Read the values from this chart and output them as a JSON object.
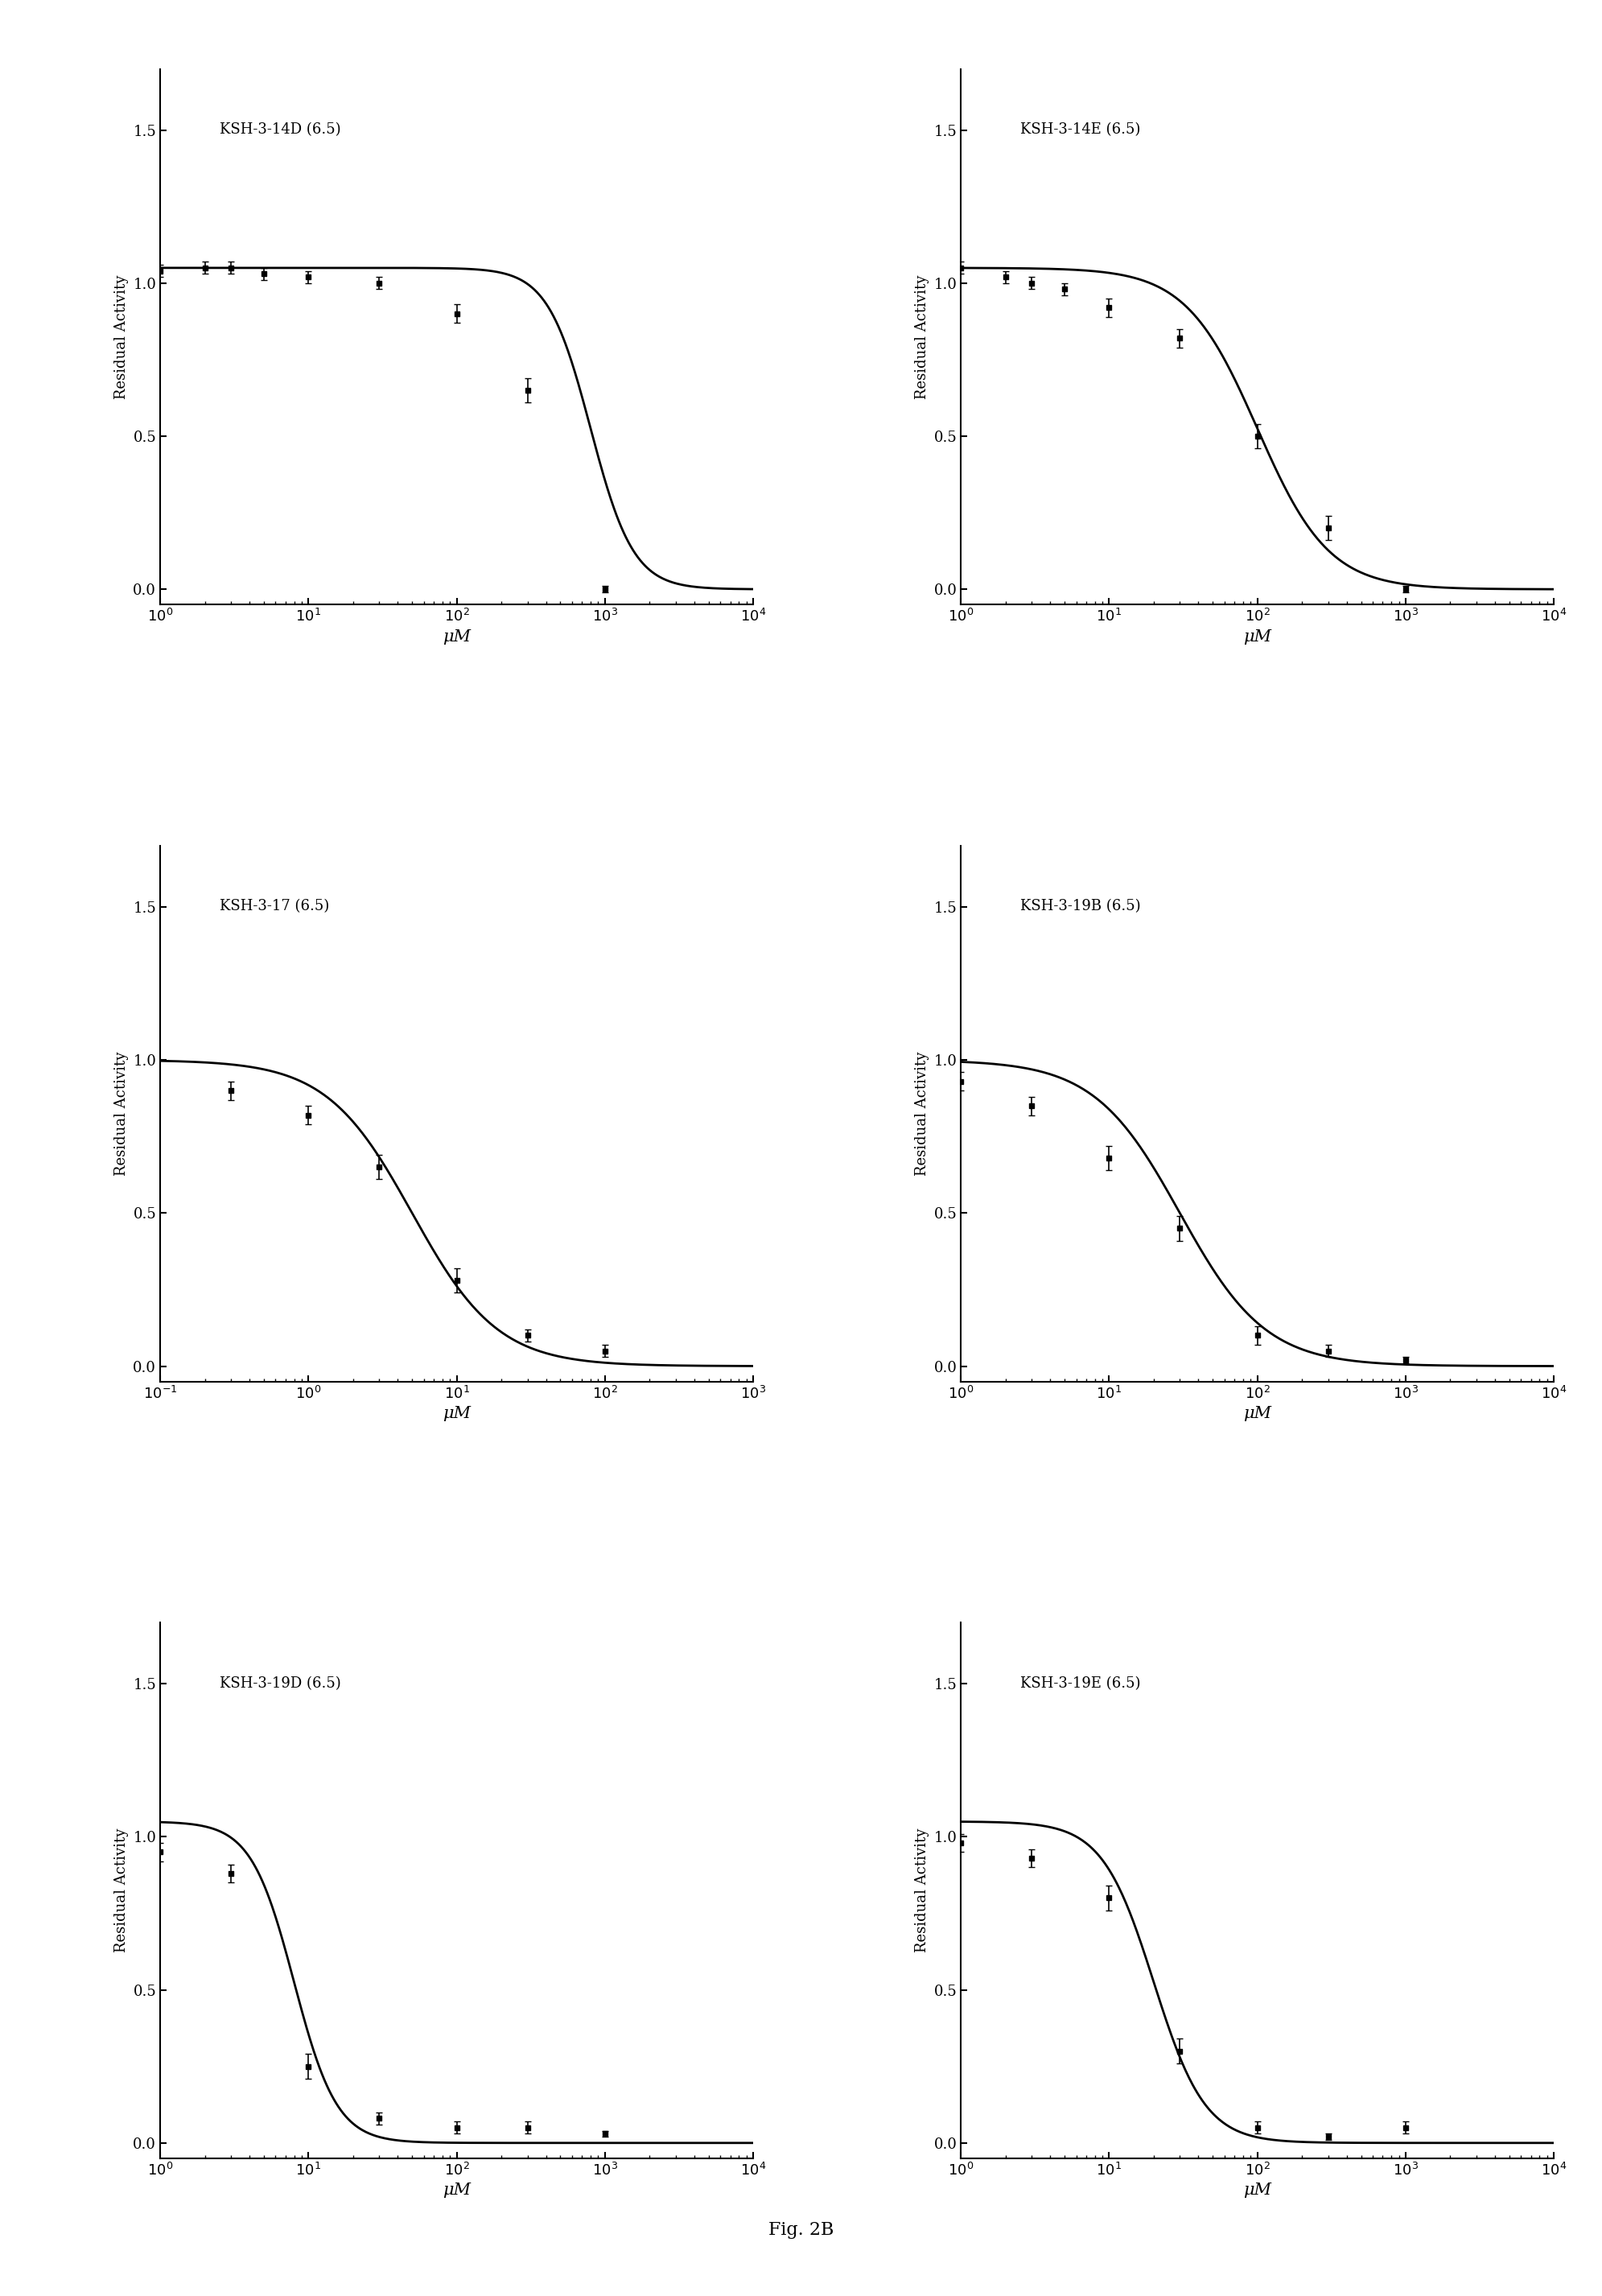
{
  "panels": [
    {
      "label": "KSH-3-14D (6.5)",
      "xmin": 1,
      "xmax": 10000,
      "x_data": [
        1,
        2,
        3,
        5,
        10,
        30,
        100,
        300,
        1000
      ],
      "y_data": [
        1.04,
        1.05,
        1.05,
        1.03,
        1.02,
        1.0,
        0.9,
        0.65,
        0.0
      ],
      "y_err": [
        0.02,
        0.02,
        0.02,
        0.02,
        0.02,
        0.02,
        0.03,
        0.04,
        0.01
      ],
      "IC50": 800,
      "Hill": 3.0,
      "Ymin": 0.0,
      "Ymax": 1.05
    },
    {
      "label": "KSH-3-14E (6.5)",
      "xmin": 1,
      "xmax": 10000,
      "x_data": [
        1,
        2,
        3,
        5,
        10,
        30,
        100,
        300,
        1000
      ],
      "y_data": [
        1.05,
        1.02,
        1.0,
        0.98,
        0.92,
        0.82,
        0.5,
        0.2,
        0.0
      ],
      "y_err": [
        0.02,
        0.02,
        0.02,
        0.02,
        0.03,
        0.03,
        0.04,
        0.04,
        0.01
      ],
      "IC50": 100,
      "Hill": 1.8,
      "Ymin": 0.0,
      "Ymax": 1.05
    },
    {
      "label": "KSH-3-17 (6.5)",
      "xmin": 0.1,
      "xmax": 1000,
      "x_data": [
        0.3,
        1,
        3,
        10,
        30,
        100
      ],
      "y_data": [
        0.9,
        0.82,
        0.65,
        0.28,
        0.1,
        0.05
      ],
      "y_err": [
        0.03,
        0.03,
        0.04,
        0.04,
        0.02,
        0.02
      ],
      "IC50": 5.0,
      "Hill": 1.5,
      "Ymin": 0.0,
      "Ymax": 1.0
    },
    {
      "label": "KSH-3-19B (6.5)",
      "xmin": 1,
      "xmax": 10000,
      "x_data": [
        1,
        3,
        10,
        30,
        100,
        300,
        1000
      ],
      "y_data": [
        0.93,
        0.85,
        0.68,
        0.45,
        0.1,
        0.05,
        0.02
      ],
      "y_err": [
        0.03,
        0.03,
        0.04,
        0.04,
        0.03,
        0.02,
        0.01
      ],
      "IC50": 30,
      "Hill": 1.5,
      "Ymin": 0.0,
      "Ymax": 1.0
    },
    {
      "label": "KSH-3-19D (6.5)",
      "xmin": 1,
      "xmax": 10000,
      "x_data": [
        1,
        3,
        10,
        30,
        100,
        300,
        1000
      ],
      "y_data": [
        0.95,
        0.88,
        0.25,
        0.08,
        0.05,
        0.05,
        0.03
      ],
      "y_err": [
        0.03,
        0.03,
        0.04,
        0.02,
        0.02,
        0.02,
        0.01
      ],
      "IC50": 8.0,
      "Hill": 3.0,
      "Ymin": 0.0,
      "Ymax": 1.05
    },
    {
      "label": "KSH-3-19E (6.5)",
      "xmin": 1,
      "xmax": 10000,
      "x_data": [
        1,
        3,
        10,
        30,
        100,
        300,
        1000
      ],
      "y_data": [
        0.98,
        0.93,
        0.8,
        0.3,
        0.05,
        0.02,
        0.05
      ],
      "y_err": [
        0.03,
        0.03,
        0.04,
        0.04,
        0.02,
        0.01,
        0.02
      ],
      "IC50": 20,
      "Hill": 2.5,
      "Ymin": 0.0,
      "Ymax": 1.05
    }
  ],
  "ylabel": "Residual Activity",
  "xlabel": "μM",
  "fig_caption": "Fig. 2B",
  "background_color": "#ffffff",
  "line_color": "#000000",
  "marker_color": "#000000"
}
